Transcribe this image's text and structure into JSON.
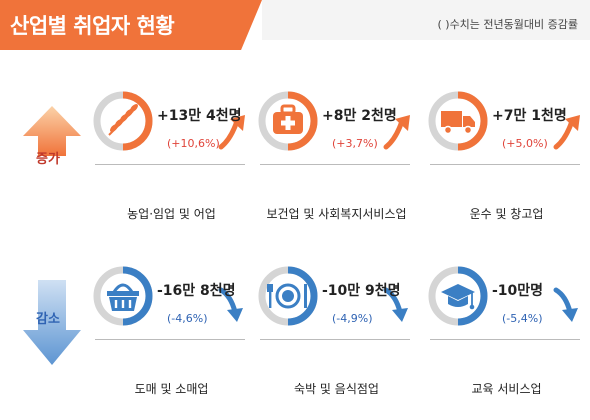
{
  "page": {
    "title": "산업별 취업자 현황",
    "note": "(  )수치는 전년동월대비 증감률"
  },
  "groups": {
    "increase": "증가",
    "decrease": "감소"
  },
  "colors": {
    "orange": "#f0733a",
    "blue": "#3b7fc4",
    "rate_red": "#e0443a",
    "rate_blue": "#2f63b3"
  },
  "chart_data": {
    "type": "table",
    "title": "산업별 취업자 현황",
    "note": "(  )수치는 전년동월대비 증감률",
    "rows": [
      {
        "group": "증가",
        "industry": "농업·임업 및 어업",
        "change_label": "+13만 4천명",
        "change": 134000,
        "rate_label": "(+10,6%)",
        "rate": 10.6,
        "icon": "wheat-icon"
      },
      {
        "group": "증가",
        "industry": "보건업 및 사회복지서비스업",
        "change_label": "+8만 2천명",
        "change": 82000,
        "rate_label": "(+3,7%)",
        "rate": 3.7,
        "icon": "medical-kit-icon"
      },
      {
        "group": "증가",
        "industry": "운수 및 창고업",
        "change_label": "+7만 1천명",
        "change": 71000,
        "rate_label": "(+5,0%)",
        "rate": 5.0,
        "icon": "truck-icon"
      },
      {
        "group": "감소",
        "industry": "도매 및 소매업",
        "change_label": "-16만 8천명",
        "change": -168000,
        "rate_label": "(-4,6%)",
        "rate": -4.6,
        "icon": "basket-icon"
      },
      {
        "group": "감소",
        "industry": "숙박 및 음식점업",
        "change_label": "-10만 9천명",
        "change": -109000,
        "rate_label": "(-4,9%)",
        "rate": -4.9,
        "icon": "dining-icon"
      },
      {
        "group": "감소",
        "industry": "교육 서비스업",
        "change_label": "-10만명",
        "change": -100000,
        "rate_label": "(-5,4%)",
        "rate": -5.4,
        "icon": "graduation-cap-icon"
      }
    ]
  }
}
